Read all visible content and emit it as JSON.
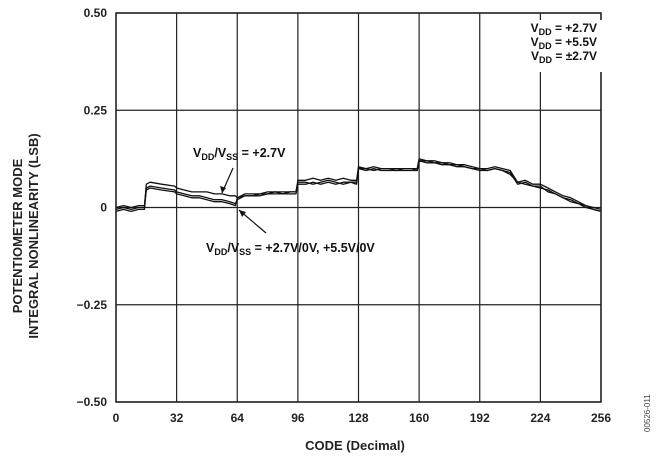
{
  "chart_data": {
    "type": "line",
    "xlabel": "CODE (Decimal)",
    "ylabel_lines": [
      "POTENTIOMETER MODE",
      "INTEGRAL NONLINEARITY (LSB)"
    ],
    "xlim": [
      0,
      256
    ],
    "ylim": [
      -0.5,
      0.5
    ],
    "x_ticks": [
      0,
      32,
      64,
      96,
      128,
      160,
      192,
      224,
      256
    ],
    "x_tick_labels": [
      "0",
      "32",
      "64",
      "96",
      "128",
      "160",
      "192",
      "224",
      "256"
    ],
    "y_ticks": [
      -0.5,
      -0.25,
      0,
      0.25,
      0.5
    ],
    "y_tick_labels": [
      "−0.50",
      "−0.25",
      "0",
      "0.25",
      "0.50"
    ],
    "grid": true,
    "legend": {
      "placement": "top-right",
      "entries": [
        {
          "base": "V",
          "sub": "DD",
          "rest": " = +2.7V"
        },
        {
          "base": "V",
          "sub": "DD",
          "rest": " = +5.5V"
        },
        {
          "base": "V",
          "sub": "DD",
          "rest": " = ±2.7V"
        }
      ]
    },
    "annotations": [
      {
        "parts": [
          {
            "t": "V"
          },
          {
            "t": "DD",
            "sub": true
          },
          {
            "t": "/V"
          },
          {
            "t": "SS",
            "sub": true
          },
          {
            "t": " = +2.7V"
          }
        ]
      },
      {
        "parts": [
          {
            "t": "V"
          },
          {
            "t": "DD",
            "sub": true
          },
          {
            "t": "/V"
          },
          {
            "t": "SS",
            "sub": true
          },
          {
            "t": " = +2.7V/0V, +5.5V/0V"
          }
        ]
      }
    ],
    "series": [
      {
        "x": [
          0,
          4,
          8,
          12,
          15,
          16,
          18,
          24,
          31,
          32,
          36,
          40,
          44,
          48,
          52,
          56,
          60,
          63,
          64,
          68,
          72,
          76,
          80,
          84,
          88,
          92,
          95,
          96,
          100,
          104,
          108,
          112,
          116,
          120,
          124,
          127,
          128,
          132,
          136,
          140,
          144,
          148,
          152,
          156,
          159,
          160,
          164,
          168,
          172,
          176,
          180,
          184,
          188,
          192,
          196,
          200,
          204,
          208,
          212,
          216,
          220,
          224,
          228,
          232,
          236,
          240,
          244,
          248,
          252,
          256
        ],
        "y": [
          -0.005,
          0.0,
          -0.005,
          0.0,
          0.0,
          0.06,
          0.065,
          0.06,
          0.055,
          0.05,
          0.045,
          0.04,
          0.04,
          0.04,
          0.035,
          0.035,
          0.03,
          0.03,
          0.025,
          0.035,
          0.035,
          0.035,
          0.04,
          0.04,
          0.04,
          0.04,
          0.04,
          0.07,
          0.07,
          0.075,
          0.07,
          0.075,
          0.07,
          0.075,
          0.07,
          0.07,
          0.105,
          0.1,
          0.105,
          0.1,
          0.1,
          0.1,
          0.1,
          0.1,
          0.1,
          0.125,
          0.12,
          0.12,
          0.115,
          0.115,
          0.11,
          0.11,
          0.105,
          0.1,
          0.1,
          0.105,
          0.1,
          0.095,
          0.065,
          0.07,
          0.06,
          0.06,
          0.05,
          0.04,
          0.03,
          0.025,
          0.015,
          0.005,
          0.0,
          -0.005
        ]
      },
      {
        "x": [
          0,
          4,
          8,
          12,
          15,
          16,
          18,
          24,
          31,
          32,
          36,
          40,
          44,
          48,
          52,
          56,
          60,
          63,
          64,
          68,
          72,
          76,
          80,
          84,
          88,
          92,
          95,
          96,
          100,
          104,
          108,
          112,
          116,
          120,
          124,
          127,
          128,
          132,
          136,
          140,
          144,
          148,
          152,
          156,
          159,
          160,
          164,
          168,
          172,
          176,
          180,
          184,
          188,
          192,
          196,
          200,
          204,
          208,
          212,
          216,
          220,
          224,
          228,
          232,
          236,
          240,
          244,
          248,
          252,
          256
        ],
        "y": [
          0.0,
          0.005,
          0.0,
          0.005,
          0.005,
          0.05,
          0.055,
          0.05,
          0.045,
          0.04,
          0.035,
          0.03,
          0.03,
          0.025,
          0.02,
          0.02,
          0.015,
          0.01,
          0.02,
          0.03,
          0.03,
          0.03,
          0.035,
          0.035,
          0.035,
          0.035,
          0.035,
          0.06,
          0.06,
          0.065,
          0.06,
          0.065,
          0.06,
          0.065,
          0.065,
          0.065,
          0.1,
          0.095,
          0.1,
          0.095,
          0.095,
          0.095,
          0.095,
          0.095,
          0.095,
          0.12,
          0.115,
          0.115,
          0.11,
          0.11,
          0.105,
          0.105,
          0.1,
          0.095,
          0.095,
          0.1,
          0.095,
          0.09,
          0.06,
          0.065,
          0.055,
          0.05,
          0.045,
          0.035,
          0.025,
          0.02,
          0.01,
          0.0,
          -0.005,
          -0.01
        ]
      },
      {
        "x": [
          0,
          4,
          8,
          12,
          15,
          16,
          18,
          24,
          31,
          32,
          36,
          40,
          44,
          48,
          52,
          56,
          60,
          63,
          64,
          68,
          72,
          76,
          80,
          84,
          88,
          92,
          95,
          96,
          100,
          104,
          108,
          112,
          116,
          120,
          124,
          127,
          128,
          132,
          136,
          140,
          144,
          148,
          152,
          156,
          159,
          160,
          164,
          168,
          172,
          176,
          180,
          184,
          188,
          192,
          196,
          200,
          204,
          208,
          212,
          216,
          220,
          224,
          228,
          232,
          236,
          240,
          244,
          248,
          252,
          256
        ],
        "y": [
          -0.01,
          -0.005,
          -0.01,
          -0.005,
          -0.005,
          0.045,
          0.05,
          0.045,
          0.04,
          0.035,
          0.03,
          0.025,
          0.025,
          0.02,
          0.015,
          0.015,
          0.01,
          0.005,
          0.025,
          0.03,
          0.03,
          0.035,
          0.035,
          0.04,
          0.035,
          0.04,
          0.04,
          0.065,
          0.065,
          0.06,
          0.065,
          0.07,
          0.065,
          0.06,
          0.065,
          0.06,
          0.1,
          0.1,
          0.095,
          0.1,
          0.1,
          0.095,
          0.1,
          0.1,
          0.095,
          0.12,
          0.12,
          0.115,
          0.115,
          0.11,
          0.11,
          0.105,
          0.1,
          0.1,
          0.095,
          0.1,
          0.095,
          0.085,
          0.065,
          0.06,
          0.055,
          0.055,
          0.04,
          0.035,
          0.025,
          0.015,
          0.01,
          0.005,
          -0.005,
          -0.01
        ]
      }
    ],
    "figure_id": "00526-011"
  }
}
